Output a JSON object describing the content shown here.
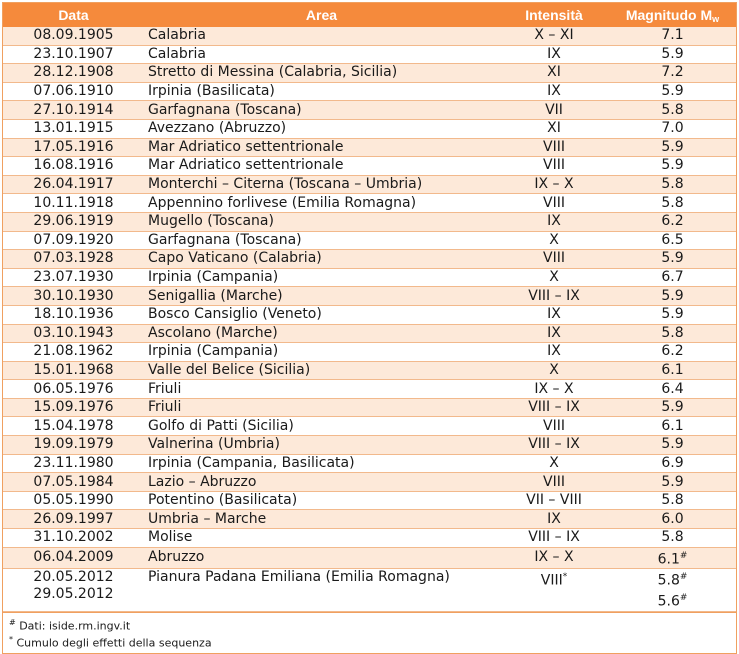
{
  "header": {
    "date": "Data",
    "area": "Area",
    "intensity": "Intensità",
    "magnitude": "Magnitudo M",
    "magnitude_sub": "w"
  },
  "rows": [
    {
      "date": "08.09.1905",
      "area": "Calabria",
      "intensity": "X – XI",
      "magnitude": "7.1"
    },
    {
      "date": "23.10.1907",
      "area": "Calabria",
      "intensity": "IX",
      "magnitude": "5.9"
    },
    {
      "date": "28.12.1908",
      "area": "Stretto di Messina (Calabria, Sicilia)",
      "intensity": "XI",
      "magnitude": "7.2"
    },
    {
      "date": "07.06.1910",
      "area": "Irpinia (Basilicata)",
      "intensity": "IX",
      "magnitude": "5.9"
    },
    {
      "date": "27.10.1914",
      "area": "Garfagnana (Toscana)",
      "intensity": "VII",
      "magnitude": "5.8"
    },
    {
      "date": "13.01.1915",
      "area": "Avezzano (Abruzzo)",
      "intensity": "XI",
      "magnitude": "7.0"
    },
    {
      "date": "17.05.1916",
      "area": "Mar Adriatico settentrionale",
      "intensity": "VIII",
      "magnitude": "5.9"
    },
    {
      "date": "16.08.1916",
      "area": "Mar Adriatico settentrionale",
      "intensity": "VIII",
      "magnitude": "5.9"
    },
    {
      "date": "26.04.1917",
      "area": "Monterchi – Citerna (Toscana – Umbria)",
      "intensity": "IX – X",
      "magnitude": "5.8"
    },
    {
      "date": "10.11.1918",
      "area": "Appennino forlivese (Emilia Romagna)",
      "intensity": "VIII",
      "magnitude": "5.8"
    },
    {
      "date": "29.06.1919",
      "area": "Mugello (Toscana)",
      "intensity": "IX",
      "magnitude": "6.2"
    },
    {
      "date": "07.09.1920",
      "area": "Garfagnana (Toscana)",
      "intensity": "X",
      "magnitude": "6.5"
    },
    {
      "date": "07.03.1928",
      "area": "Capo Vaticano (Calabria)",
      "intensity": "VIII",
      "magnitude": "5.9"
    },
    {
      "date": "23.07.1930",
      "area": "Irpinia (Campania)",
      "intensity": "X",
      "magnitude": "6.7"
    },
    {
      "date": "30.10.1930",
      "area": "Senigallia (Marche)",
      "intensity": "VIII – IX",
      "magnitude": "5.9"
    },
    {
      "date": "18.10.1936",
      "area": "Bosco Cansiglio (Veneto)",
      "intensity": "IX",
      "magnitude": "5.9"
    },
    {
      "date": "03.10.1943",
      "area": "Ascolano (Marche)",
      "intensity": "IX",
      "magnitude": "5.8"
    },
    {
      "date": "21.08.1962",
      "area": "Irpinia (Campania)",
      "intensity": "IX",
      "magnitude": "6.2"
    },
    {
      "date": "15.01.1968",
      "area": "Valle del Belice (Sicilia)",
      "intensity": "X",
      "magnitude": "6.1"
    },
    {
      "date": "06.05.1976",
      "area": "Friuli",
      "intensity": "IX – X",
      "magnitude": "6.4"
    },
    {
      "date": "15.09.1976",
      "area": "Friuli",
      "intensity": "VIII – IX",
      "magnitude": "5.9"
    },
    {
      "date": "15.04.1978",
      "area": "Golfo di Patti (Sicilia)",
      "intensity": "VIII",
      "magnitude": "6.1"
    },
    {
      "date": "19.09.1979",
      "area": "Valnerina (Umbria)",
      "intensity": "VIII – IX",
      "magnitude": "5.9"
    },
    {
      "date": "23.11.1980",
      "area": "Irpinia (Campania, Basilicata)",
      "intensity": "X",
      "magnitude": "6.9"
    },
    {
      "date": "07.05.1984",
      "area": "Lazio – Abruzzo",
      "intensity": "VIII",
      "magnitude": "5.9"
    },
    {
      "date": "05.05.1990",
      "area": "Potentino (Basilicata)",
      "intensity": "VII – VIII",
      "magnitude": "5.8"
    },
    {
      "date": "26.09.1997",
      "area": "Umbria – Marche",
      "intensity": "IX",
      "magnitude": "6.0"
    },
    {
      "date": "31.10.2002",
      "area": "Molise",
      "intensity": "VIII – IX",
      "magnitude": "5.8"
    },
    {
      "date": "06.04.2009",
      "area": "Abruzzo",
      "intensity": "IX – X",
      "magnitude": "6.1",
      "magnitude_mark": "#"
    }
  ],
  "last_row": {
    "date1": "20.05.2012",
    "date2": "29.05.2012",
    "area": "Pianura Padana Emiliana (Emilia Romagna)",
    "intensity": "VIII",
    "intensity_mark": "*",
    "magnitude1": "5.8",
    "magnitude2": "5.6",
    "magnitude_mark": "#"
  },
  "notes": {
    "note1_mark": "#",
    "note1": " Dati: iside.rm.ingv.it",
    "note2_mark": "*",
    "note2": " Cumulo degli effetti della sequenza"
  },
  "colors": {
    "header_bg": "#f58a3c",
    "row_alt_bg": "#fde9d9",
    "border": "#f2b98c"
  }
}
